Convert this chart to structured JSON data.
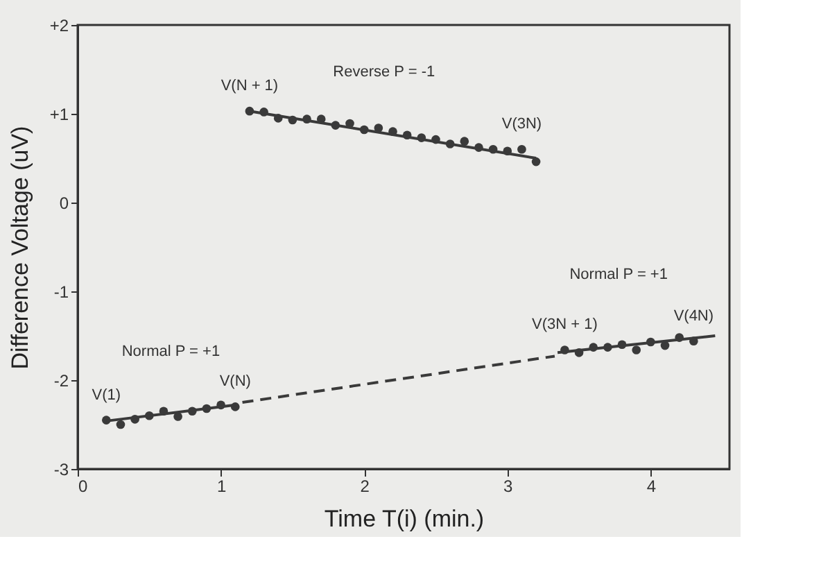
{
  "chart_data": {
    "type": "scatter",
    "xlabel": "Time T(i)   (min.)",
    "ylabel": "Difference Voltage (uV)",
    "xlim": [
      0,
      4.55
    ],
    "xticks": [
      0,
      1,
      2,
      3,
      4
    ],
    "ylim": [
      -3,
      2
    ],
    "yticks": [
      {
        "value": 2,
        "label": "+2"
      },
      {
        "value": 1,
        "label": "+1"
      },
      0,
      -1,
      -2,
      -3
    ],
    "grid": false,
    "marker": "circle",
    "series": [
      {
        "color": "#3a3a3a",
        "x": [
          0.2,
          0.3,
          0.4,
          0.5,
          0.6,
          0.7,
          0.8,
          0.9,
          1.0,
          1.1
        ],
        "values": [
          -2.45,
          -2.5,
          -2.44,
          -2.4,
          -2.35,
          -2.41,
          -2.35,
          -2.32,
          -2.28,
          -2.3
        ]
      },
      {
        "type": "line",
        "marker": "none",
        "color": "#3a3a3a",
        "line_style": "solid",
        "x": [
          0.2,
          1.1
        ],
        "values": [
          -2.46,
          -2.28
        ]
      },
      {
        "type": "line",
        "marker": "none",
        "color": "#3a3a3a",
        "line_style": "dashed",
        "x": [
          1.15,
          3.33
        ],
        "values": [
          -2.25,
          -1.73
        ]
      },
      {
        "color": "#3a3a3a",
        "x": [
          1.2,
          1.3,
          1.4,
          1.5,
          1.6,
          1.7,
          1.8,
          1.9,
          2.0,
          2.1,
          2.2,
          2.3,
          2.4,
          2.5,
          2.6,
          2.7,
          2.8,
          2.9,
          3.0,
          3.1,
          3.2
        ],
        "values": [
          1.03,
          1.02,
          0.95,
          0.93,
          0.94,
          0.94,
          0.87,
          0.89,
          0.82,
          0.84,
          0.8,
          0.76,
          0.73,
          0.71,
          0.66,
          0.69,
          0.62,
          0.6,
          0.58,
          0.6,
          0.46
        ]
      },
      {
        "type": "line",
        "marker": "none",
        "color": "#3a3a3a",
        "line_style": "solid",
        "x": [
          1.2,
          3.2
        ],
        "values": [
          1.03,
          0.5
        ]
      },
      {
        "color": "#3a3a3a",
        "x": [
          3.4,
          3.5,
          3.6,
          3.7,
          3.8,
          3.9,
          4.0,
          4.1,
          4.2,
          4.3
        ],
        "values": [
          -1.66,
          -1.69,
          -1.63,
          -1.63,
          -1.6,
          -1.66,
          -1.57,
          -1.61,
          -1.52,
          -1.56
        ]
      },
      {
        "type": "line",
        "marker": "none",
        "color": "#3a3a3a",
        "line_style": "solid",
        "x": [
          3.35,
          4.45
        ],
        "values": [
          -1.69,
          -1.5
        ]
      }
    ],
    "annotations": [
      "Reverse  P = -1",
      "Normal  P = +1",
      "Normal  P = +1",
      {
        "text": "V(1)",
        "x": 0.2,
        "y": -2.45
      },
      {
        "text": "V(N)",
        "x": 1.1,
        "y": -2.3
      },
      {
        "text": "V(N + 1)",
        "x": 1.2,
        "y": 1.03
      },
      {
        "text": "V(3N)",
        "x": 3.1,
        "y": 0.6
      },
      {
        "text": "V(3N + 1)",
        "x": 3.4,
        "y": -1.66
      },
      {
        "text": "V(4N)",
        "x": 4.3,
        "y": -1.56
      }
    ]
  }
}
